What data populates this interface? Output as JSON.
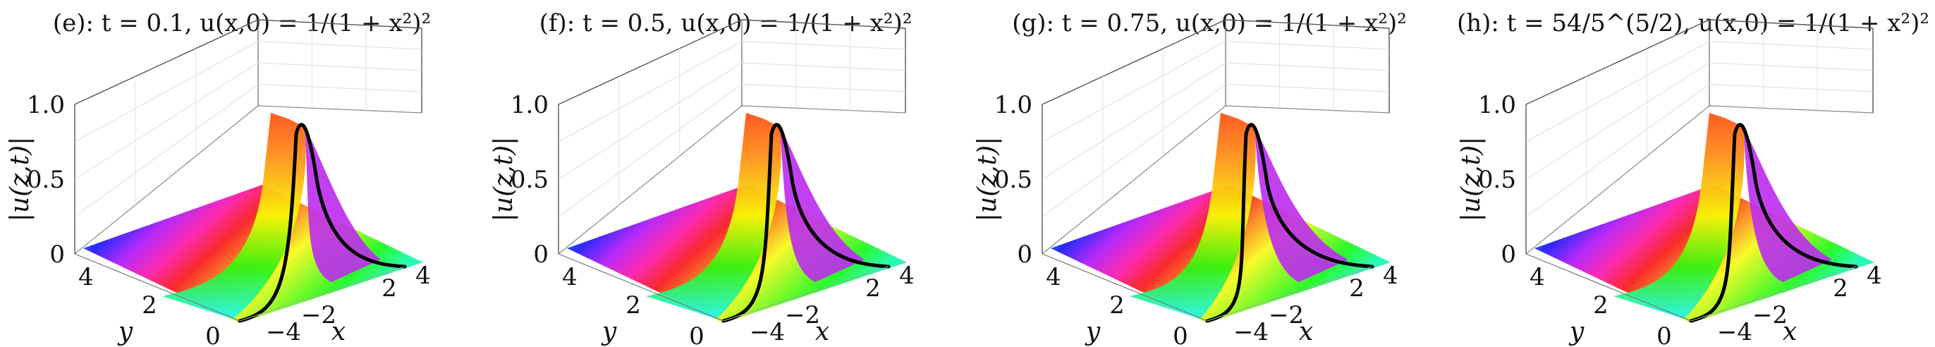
{
  "chart_data": [
    {
      "type": "surface3d",
      "title": "(e): t = 0.1,  u(x,0) = 1/(1 + x²)²",
      "t": 0.1,
      "initial_condition": "u(x,0) = 1/(1 + x²)²",
      "zlabel": "|u(z,t)|",
      "xlabel": "x",
      "ylabel": "y",
      "z_ticks": [
        "0",
        "0.5",
        "1.0"
      ],
      "y_ticks": [
        "0",
        "2",
        "4"
      ],
      "x_ticks": [
        "−4",
        "−2",
        "0",
        "2",
        "4"
      ],
      "xlim": [
        -4,
        4
      ],
      "ylim": [
        0,
        4
      ],
      "zlim": [
        0,
        1
      ],
      "grid": true,
      "colormap": "hsv phase coloring",
      "boundary_curve": "|u(x,t)| on real axis (black)"
    },
    {
      "type": "surface3d",
      "title": "(f): t = 0.5,  u(x,0) = 1/(1 + x²)²",
      "t": 0.5,
      "initial_condition": "u(x,0) = 1/(1 + x²)²",
      "zlabel": "|u(z,t)|",
      "xlabel": "x",
      "ylabel": "y",
      "z_ticks": [
        "0",
        "0.5",
        "1.0"
      ],
      "y_ticks": [
        "0",
        "2",
        "4"
      ],
      "x_ticks": [
        "−4",
        "−2",
        "0",
        "2",
        "4"
      ],
      "xlim": [
        -4,
        4
      ],
      "ylim": [
        0,
        4
      ],
      "zlim": [
        0,
        1
      ],
      "grid": true,
      "colormap": "hsv phase coloring",
      "boundary_curve": "|u(x,t)| on real axis (black)"
    },
    {
      "type": "surface3d",
      "title": "(g): t = 0.75,  u(x,0) = 1/(1 + x²)²",
      "t": 0.75,
      "initial_condition": "u(x,0) = 1/(1 + x²)²",
      "zlabel": "|u(z,t)|",
      "xlabel": "x",
      "ylabel": "y",
      "z_ticks": [
        "0",
        "0.5",
        "1.0"
      ],
      "y_ticks": [
        "0",
        "2",
        "4"
      ],
      "x_ticks": [
        "−4",
        "−2",
        "0",
        "2",
        "4"
      ],
      "xlim": [
        -4,
        4
      ],
      "ylim": [
        0,
        4
      ],
      "zlim": [
        0,
        1
      ],
      "grid": true,
      "colormap": "hsv phase coloring",
      "boundary_curve": "|u(x,t)| on real axis (black)"
    },
    {
      "type": "surface3d",
      "title": "(h): t = 54/5^(5/2),  u(x,0) = 1/(1 + x²)²",
      "t": "54/5^(5/2)",
      "initial_condition": "u(x,0) = 1/(1 + x²)²",
      "zlabel": "|u(z,t)|",
      "xlabel": "x",
      "ylabel": "y",
      "z_ticks": [
        "0",
        "0.5",
        "1.0"
      ],
      "y_ticks": [
        "0",
        "2",
        "4"
      ],
      "x_ticks": [
        "−4",
        "−2",
        "0",
        "2",
        "4"
      ],
      "xlim": [
        -4,
        4
      ],
      "ylim": [
        0,
        4
      ],
      "zlim": [
        0,
        1
      ],
      "grid": true,
      "colormap": "hsv phase coloring",
      "boundary_curve": "|u(x,t)| on real axis (black)"
    }
  ]
}
